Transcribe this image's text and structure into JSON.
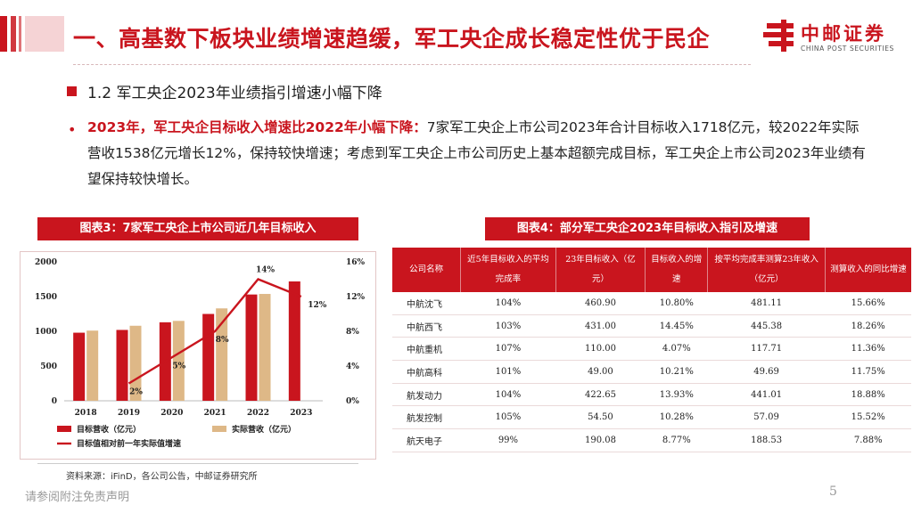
{
  "header": {
    "title": "一、高基数下板块业绩增速趋缓，军工央企成长稳定性优于民企",
    "logo_name": "中邮证券",
    "logo_sub": "CHINA POST SECURITIES"
  },
  "section": {
    "subtitle": "1.2 军工央企2023年业绩指引增速小幅下降",
    "highlight": "2023年，军工央企目标收入增速比2022年小幅下降：",
    "body": "7家军工央企上市公司2023年合计目标收入1718亿元，较2022年实际营收1538亿元增长12%，保持较快增速；考虑到军工央企上市公司历史上基本超额完成目标，军工央企上市公司2023年业绩有望保持较快增长。"
  },
  "chart3_title": "图表3：7家军工央企上市公司近几年目标收入",
  "table4_title": "图表4：部分军工央企2023年目标收入指引及增速",
  "chart_data": {
    "type": "bar",
    "categories": [
      "2018",
      "2019",
      "2020",
      "2021",
      "2022",
      "2023"
    ],
    "series": [
      {
        "name": "目标营收（亿元）",
        "values": [
          980,
          1020,
          1130,
          1250,
          1530,
          1718
        ],
        "color": "#c9151e",
        "axis": "left"
      },
      {
        "name": "实际营收（亿元）",
        "values": [
          1010,
          1080,
          1150,
          1330,
          1538,
          null
        ],
        "color": "#deb887",
        "axis": "left"
      },
      {
        "name": "目标值相对前一年实际值增速",
        "type": "line",
        "values": [
          null,
          2,
          5,
          8,
          14,
          12
        ],
        "color": "#c9151e",
        "axis": "right"
      }
    ],
    "line_labels": [
      "",
      "2%",
      "5%",
      "8%",
      "14%",
      "12%"
    ],
    "y_left": {
      "ticks": [
        "0",
        "500",
        "1000",
        "1500",
        "2000"
      ],
      "range": [
        0,
        2000
      ]
    },
    "y_right": {
      "ticks": [
        "0%",
        "4%",
        "8%",
        "12%",
        "16%"
      ],
      "range": [
        0,
        16
      ]
    },
    "legend": [
      "目标营收（亿元）",
      "实际营收（亿元）",
      "目标值相对前一年实际值增速"
    ]
  },
  "table": {
    "headers": [
      "公司名称",
      "近5年目标收入的平均完成率",
      "23年目标收入（亿元）",
      "目标收入的增速",
      "按平均完成率测算23年收入（亿元）",
      "测算收入的同比增速"
    ],
    "rows": [
      [
        "中航沈飞",
        "104%",
        "460.90",
        "10.80%",
        "481.11",
        "15.66%"
      ],
      [
        "中航西飞",
        "103%",
        "431.00",
        "14.45%",
        "445.38",
        "18.26%"
      ],
      [
        "中航重机",
        "107%",
        "110.00",
        "4.07%",
        "117.71",
        "11.36%"
      ],
      [
        "中航高科",
        "101%",
        "49.00",
        "10.21%",
        "49.69",
        "11.75%"
      ],
      [
        "航发动力",
        "104%",
        "422.65",
        "13.93%",
        "441.01",
        "18.88%"
      ],
      [
        "航发控制",
        "105%",
        "54.50",
        "10.28%",
        "57.09",
        "15.52%"
      ],
      [
        "航天电子",
        "99%",
        "190.08",
        "8.77%",
        "188.53",
        "7.88%"
      ]
    ]
  },
  "footer": {
    "source": "资料来源：iFinD，各公司公告，中邮证券研究所",
    "disclaimer": "请参阅附注免责声明",
    "page": "5"
  },
  "colors": {
    "accent": "#c9151e",
    "bar_actual": "#deb887"
  }
}
